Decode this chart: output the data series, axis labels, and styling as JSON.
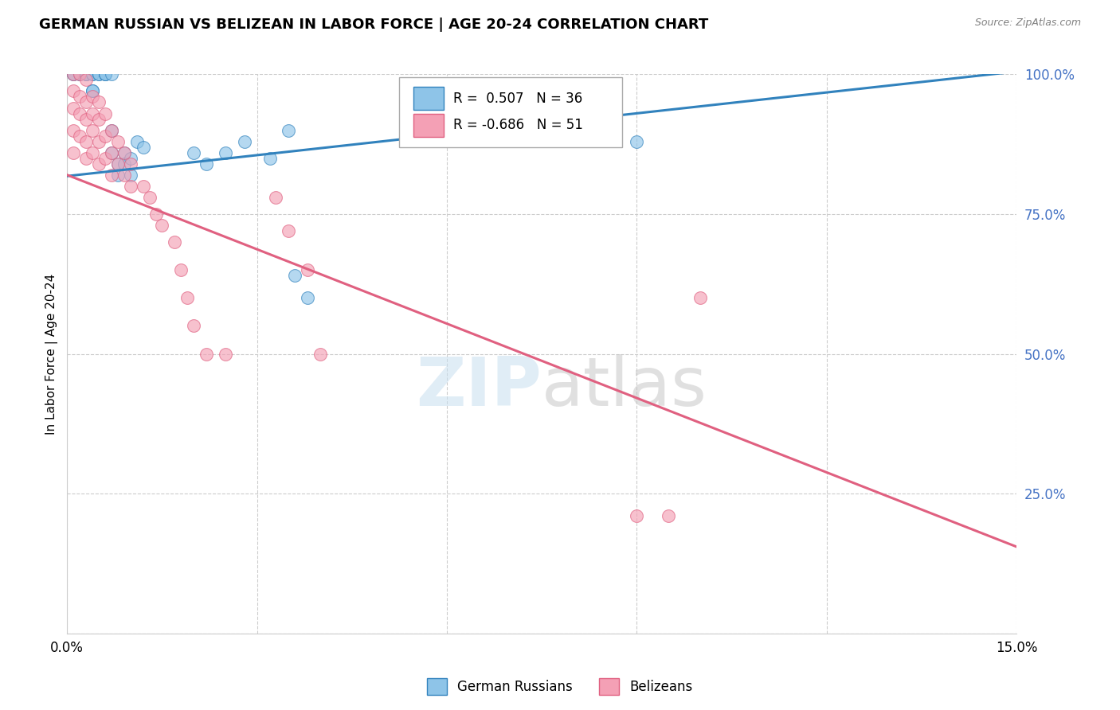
{
  "title": "GERMAN RUSSIAN VS BELIZEAN IN LABOR FORCE | AGE 20-24 CORRELATION CHART",
  "source": "Source: ZipAtlas.com",
  "ylabel": "In Labor Force | Age 20-24",
  "xlim": [
    0.0,
    0.15
  ],
  "ylim": [
    0.0,
    1.0
  ],
  "xticks": [
    0.0,
    0.03,
    0.06,
    0.09,
    0.12,
    0.15
  ],
  "yticks": [
    0.0,
    0.25,
    0.5,
    0.75,
    1.0
  ],
  "ytick_labels": [
    "",
    "25.0%",
    "50.0%",
    "75.0%",
    "100.0%"
  ],
  "blue_R": 0.507,
  "blue_N": 36,
  "pink_R": -0.686,
  "pink_N": 51,
  "blue_color": "#8ec4e8",
  "pink_color": "#f4a0b5",
  "blue_line_color": "#3182bd",
  "pink_line_color": "#e06080",
  "blue_scatter_x": [
    0.001,
    0.001,
    0.002,
    0.002,
    0.003,
    0.003,
    0.003,
    0.004,
    0.004,
    0.004,
    0.004,
    0.005,
    0.005,
    0.006,
    0.006,
    0.006,
    0.007,
    0.007,
    0.007,
    0.008,
    0.008,
    0.009,
    0.009,
    0.01,
    0.01,
    0.011,
    0.012,
    0.02,
    0.022,
    0.025,
    0.028,
    0.032,
    0.035,
    0.09,
    0.036,
    0.038
  ],
  "blue_scatter_y": [
    1.0,
    1.0,
    1.0,
    1.0,
    1.0,
    1.0,
    1.0,
    1.0,
    1.0,
    0.97,
    0.97,
    1.0,
    1.0,
    1.0,
    1.0,
    1.0,
    1.0,
    0.9,
    0.86,
    0.84,
    0.82,
    0.86,
    0.84,
    0.85,
    0.82,
    0.88,
    0.87,
    0.86,
    0.84,
    0.86,
    0.88,
    0.85,
    0.9,
    0.88,
    0.64,
    0.6
  ],
  "pink_scatter_x": [
    0.001,
    0.001,
    0.001,
    0.001,
    0.001,
    0.002,
    0.002,
    0.002,
    0.002,
    0.003,
    0.003,
    0.003,
    0.003,
    0.003,
    0.004,
    0.004,
    0.004,
    0.004,
    0.005,
    0.005,
    0.005,
    0.005,
    0.006,
    0.006,
    0.006,
    0.007,
    0.007,
    0.007,
    0.008,
    0.008,
    0.009,
    0.009,
    0.01,
    0.01,
    0.012,
    0.013,
    0.014,
    0.015,
    0.017,
    0.018,
    0.019,
    0.02,
    0.022,
    0.025,
    0.033,
    0.035,
    0.038,
    0.04,
    0.09,
    0.095,
    0.1
  ],
  "pink_scatter_y": [
    1.0,
    0.97,
    0.94,
    0.9,
    0.86,
    1.0,
    0.96,
    0.93,
    0.89,
    0.99,
    0.95,
    0.92,
    0.88,
    0.85,
    0.96,
    0.93,
    0.9,
    0.86,
    0.95,
    0.92,
    0.88,
    0.84,
    0.93,
    0.89,
    0.85,
    0.9,
    0.86,
    0.82,
    0.88,
    0.84,
    0.86,
    0.82,
    0.84,
    0.8,
    0.8,
    0.78,
    0.75,
    0.73,
    0.7,
    0.65,
    0.6,
    0.55,
    0.5,
    0.5,
    0.78,
    0.72,
    0.65,
    0.5,
    0.21,
    0.21,
    0.6
  ]
}
